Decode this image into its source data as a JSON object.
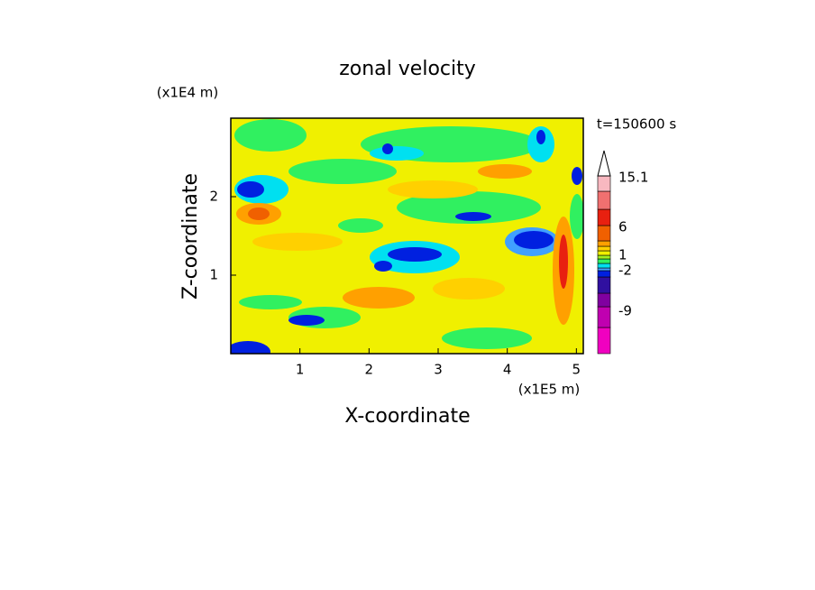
{
  "chart_data": {
    "type": "contour",
    "title": "zonal velocity",
    "x_label": "X-coordinate",
    "y_label": "Z-coordinate",
    "x_unit": "(x1E5 m)",
    "y_unit": "(x1E4 m)",
    "time_label": "t=150600 s",
    "xlim": [
      0,
      5.1
    ],
    "xticks": [
      1,
      2,
      3,
      4,
      5
    ],
    "ylim": [
      0,
      3
    ],
    "yticks": [
      1,
      2
    ],
    "colorbar": {
      "colors": [
        "#f000c0",
        "#c000b0",
        "#8000a0",
        "#3010a0",
        "#0020e0",
        "#40a0ff",
        "#00e0f0",
        "#30f060",
        "#a0f020",
        "#f0f000",
        "#ffd000",
        "#ffa000",
        "#f06000",
        "#e82010",
        "#f07070",
        "#f8b8c0"
      ],
      "ticks": [
        15.1,
        6,
        1,
        -2,
        -9
      ]
    }
  }
}
